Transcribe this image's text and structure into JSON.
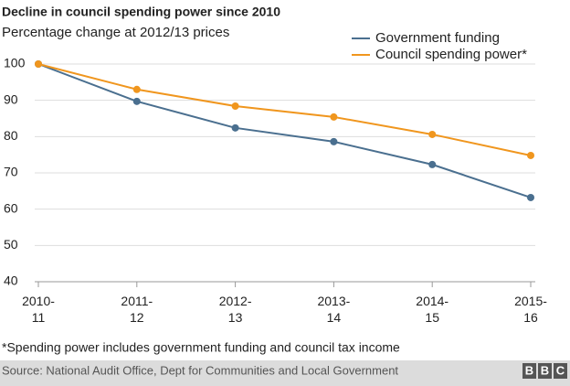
{
  "chart_data": {
    "type": "line",
    "title": "Decline in council spending power since 2010",
    "subtitle": "Percentage change at 2012/13 prices",
    "categories": [
      "2010-\n11",
      "2011-\n12",
      "2012-\n13",
      "2013-\n14",
      "2014-\n15",
      "2015-\n16"
    ],
    "series": [
      {
        "name": "Government funding",
        "color": "#4a6f8f",
        "values": [
          100,
          89.7,
          82.4,
          78.6,
          72.3,
          63.2
        ]
      },
      {
        "name": "Council spending power*",
        "color": "#f0961e",
        "values": [
          100,
          93,
          88.4,
          85.4,
          80.6,
          74.8
        ]
      }
    ],
    "ylim": [
      40,
      100
    ],
    "yticks": [
      40,
      50,
      60,
      70,
      80,
      90,
      100
    ],
    "grid": true,
    "legend": "top-right",
    "footnote": "*Spending power includes government funding and council tax income",
    "source": "Source: National Audit Office, Dept for Communities and Local Government",
    "logo": [
      "B",
      "B",
      "C"
    ]
  }
}
